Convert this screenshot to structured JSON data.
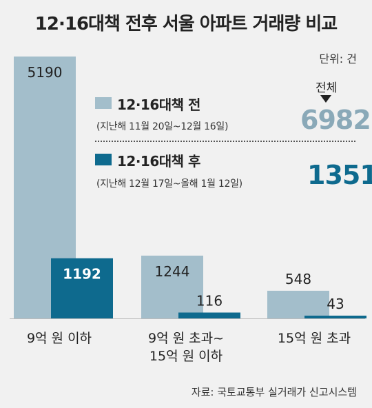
{
  "header": {
    "title": "12·16대책 전후 서울 아파트 거래량 비교",
    "unit": "단위: 건"
  },
  "legend": {
    "before": {
      "label": "12·16대책 전",
      "period": "(지난해 11월 20일~12월 16일)",
      "color": "#a3becb"
    },
    "after": {
      "label": "12·16대책 후",
      "period": "(지난해 12월 17일~올해 1월 12일)",
      "color": "#0e6a8e"
    }
  },
  "totals": {
    "label": "전체",
    "before": "6982",
    "after": "1351"
  },
  "source": "자료: 국토교통부 실거래가 신고시스템",
  "chart_data": {
    "type": "bar",
    "categories": [
      "9억 원 이하",
      "9억 원 초과~\n15억 원 이하",
      "15억 원 초과"
    ],
    "series": [
      {
        "name": "12·16대책 전",
        "values": [
          5190,
          1244,
          548
        ],
        "color": "#a3becb"
      },
      {
        "name": "12·16대책 후",
        "values": [
          1192,
          116,
          43
        ],
        "color": "#0e6a8e"
      }
    ],
    "ylim": [
      0,
      5190
    ],
    "grid": false,
    "legend_position": "top-right"
  }
}
